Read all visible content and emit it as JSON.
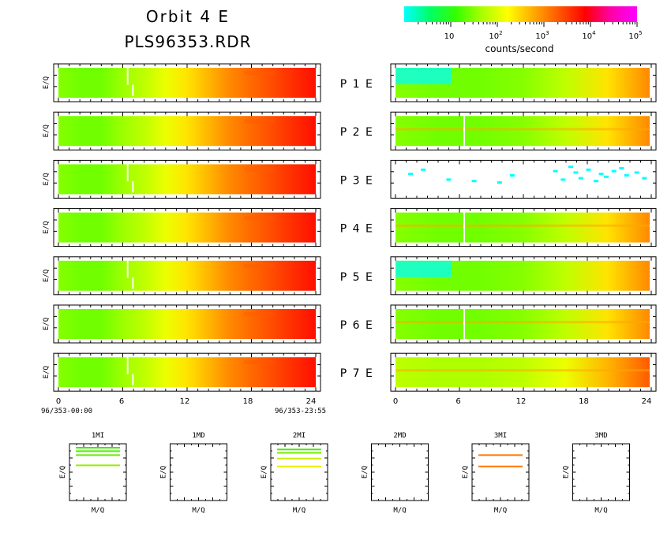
{
  "header": {
    "title": "Orbit 4 E",
    "filename": "PLS96353.RDR"
  },
  "colorbar": {
    "colors": [
      "#00ffff",
      "#00ff66",
      "#33ff00",
      "#aaff00",
      "#ffff00",
      "#ffaa00",
      "#ff5500",
      "#ff0000",
      "#ff00aa",
      "#ff00ff"
    ],
    "tick_labels": [
      {
        "base": "10",
        "exp": ""
      },
      {
        "base": "10",
        "exp": "2"
      },
      {
        "base": "10",
        "exp": "3"
      },
      {
        "base": "10",
        "exp": "4"
      },
      {
        "base": "10",
        "exp": "5"
      }
    ],
    "unit_label": "counts/second"
  },
  "panels": {
    "ylabel": "E/Q",
    "rows": [
      {
        "label": "P  1  E",
        "left_gaps": [
          6.5,
          7.0
        ],
        "right_type": "cyan-top",
        "right_gaps": []
      },
      {
        "label": "P  2  E",
        "left_gaps": [],
        "right_type": "band",
        "right_gaps": [
          6.5
        ]
      },
      {
        "label": "P  3  E",
        "left_gaps": [
          6.5,
          7.0
        ],
        "right_type": "sparse",
        "right_gaps": []
      },
      {
        "label": "P  4  E",
        "left_gaps": [],
        "right_type": "band",
        "right_gaps": [
          6.5
        ]
      },
      {
        "label": "P  5  E",
        "left_gaps": [
          6.5,
          7.0
        ],
        "right_type": "cyan-top",
        "right_gaps": []
      },
      {
        "label": "P  6  E",
        "left_gaps": [],
        "right_type": "band",
        "right_gaps": [
          6.5
        ]
      },
      {
        "label": "P  7  E",
        "left_gaps": [
          6.5,
          7.0
        ],
        "right_type": "band-hot",
        "right_gaps": []
      }
    ],
    "x_ticks": [
      "0",
      "6",
      "12",
      "18",
      "24"
    ],
    "time_start": "96/353-00:00",
    "time_end": "96/353-23:55"
  },
  "chart_data": {
    "type": "heatmap",
    "x_unit": "hours",
    "xlim": [
      0,
      24
    ],
    "x_ticks": [
      0,
      6,
      12,
      18,
      24
    ],
    "color_scale": "log",
    "color_range": [
      1,
      100000
    ],
    "left_profile_hours": [
      0,
      2,
      4,
      6,
      8,
      10,
      12,
      14,
      16,
      18,
      20,
      22,
      24
    ],
    "left_profile_log_counts": [
      1.5,
      1.4,
      1.4,
      1.6,
      1.8,
      2.1,
      2.4,
      2.7,
      3.0,
      3.2,
      3.4,
      3.6,
      3.8
    ],
    "right_profile_hours": [
      0,
      4,
      8,
      12,
      16,
      20,
      24
    ],
    "right_profile_log_counts": [
      1.5,
      1.4,
      1.4,
      1.5,
      1.8,
      2.4,
      3.0
    ]
  },
  "mq_panels": {
    "xlabel": "M/Q",
    "ylabel": "E/Q",
    "items": [
      {
        "title": "1MI",
        "lines": [
          {
            "y": 0.07,
            "color": "#33ee00"
          },
          {
            "y": 0.13,
            "color": "#55ee00"
          },
          {
            "y": 0.2,
            "color": "#66ee00"
          },
          {
            "y": 0.38,
            "color": "#99ee00"
          }
        ]
      },
      {
        "title": "1MD",
        "lines": []
      },
      {
        "title": "2MI",
        "lines": [
          {
            "y": 0.1,
            "color": "#44ee00"
          },
          {
            "y": 0.16,
            "color": "#77ee00"
          },
          {
            "y": 0.26,
            "color": "#ccee00"
          },
          {
            "y": 0.4,
            "color": "#eeee00"
          }
        ]
      },
      {
        "title": "2MD",
        "lines": []
      },
      {
        "title": "3MI",
        "lines": [
          {
            "y": 0.2,
            "color": "#ff7700"
          },
          {
            "y": 0.4,
            "color": "#ff7700"
          }
        ]
      },
      {
        "title": "3MD",
        "lines": []
      }
    ]
  }
}
